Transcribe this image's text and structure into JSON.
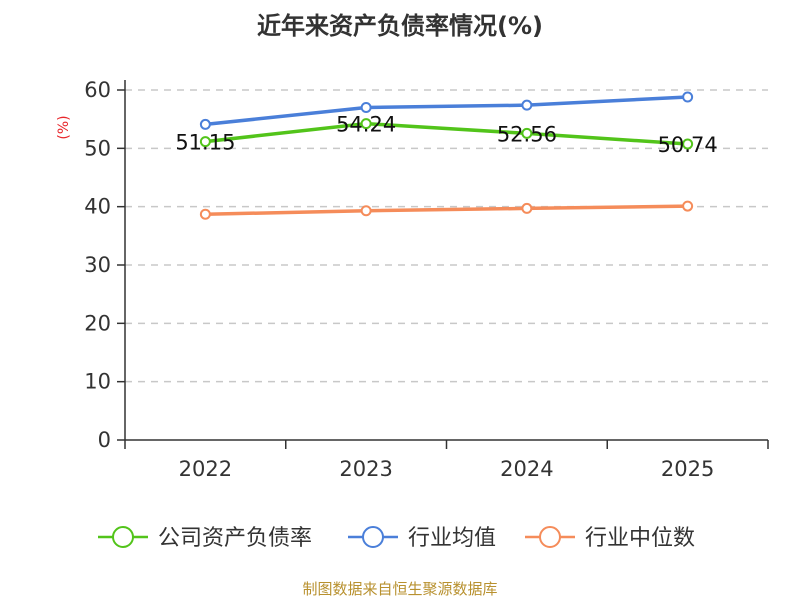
{
  "title": "近年来资产负债率情况(%)",
  "source": "制图数据来自恒生聚源数据库",
  "colors": {
    "company": "#52c41a",
    "industry_avg": "#4a7fd9",
    "industry_median": "#f58c5a",
    "axis": "#333333",
    "grid": "#c8c8c8",
    "ylabel": "#e8262b",
    "source": "#b8912f"
  },
  "chart_data": {
    "type": "line",
    "title": "近年来资产负债率情况(%)",
    "ylabel": "(%)",
    "xlabel": "",
    "categories": [
      "2022",
      "2023",
      "2024",
      "2025"
    ],
    "ylim": [
      0,
      60
    ],
    "yticks": [
      "0",
      "10",
      "20",
      "30",
      "40",
      "50",
      "60"
    ],
    "grid": true,
    "legend_position": "bottom",
    "series": [
      {
        "name": "公司资产负债率",
        "values": [
          51.15,
          54.24,
          52.56,
          50.74
        ],
        "labels": [
          "51.15",
          "54.24",
          "52.56",
          "50.74"
        ]
      },
      {
        "name": "行业均值",
        "values": [
          54.1,
          57.0,
          57.4,
          58.8
        ]
      },
      {
        "name": "行业中位数",
        "values": [
          38.7,
          39.3,
          39.7,
          40.1
        ]
      }
    ]
  }
}
